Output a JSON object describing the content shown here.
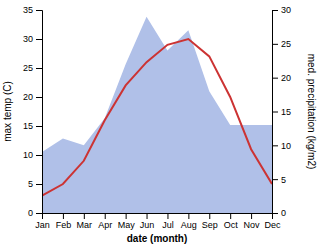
{
  "chart_data": {
    "type": "line",
    "categories": [
      "Jan",
      "Feb",
      "Mar",
      "Apr",
      "May",
      "Jun",
      "Jul",
      "Aug",
      "Sep",
      "Oct",
      "Nov",
      "Dec"
    ],
    "xlabel": "date (month)",
    "ylabel": "max temp (C)",
    "y2label": "med. precipitation (kg/m2)",
    "series": [
      {
        "type": "area",
        "axis": "y2",
        "color": "#b0c0e8",
        "values": [
          9,
          11,
          10,
          14,
          22,
          29,
          24,
          27,
          18,
          13,
          13,
          13
        ]
      },
      {
        "type": "line",
        "color": "#cc3333",
        "values": [
          3,
          5,
          9,
          16,
          22,
          26,
          29,
          30,
          27,
          20,
          11,
          5
        ]
      }
    ],
    "ylim": [
      0,
      35
    ],
    "yticks": [
      0,
      5,
      10,
      15,
      20,
      25,
      30,
      35
    ],
    "y2lim": [
      0,
      30
    ],
    "y2ticks": [
      0,
      5,
      10,
      15,
      20,
      25,
      30
    ],
    "grid": false
  }
}
